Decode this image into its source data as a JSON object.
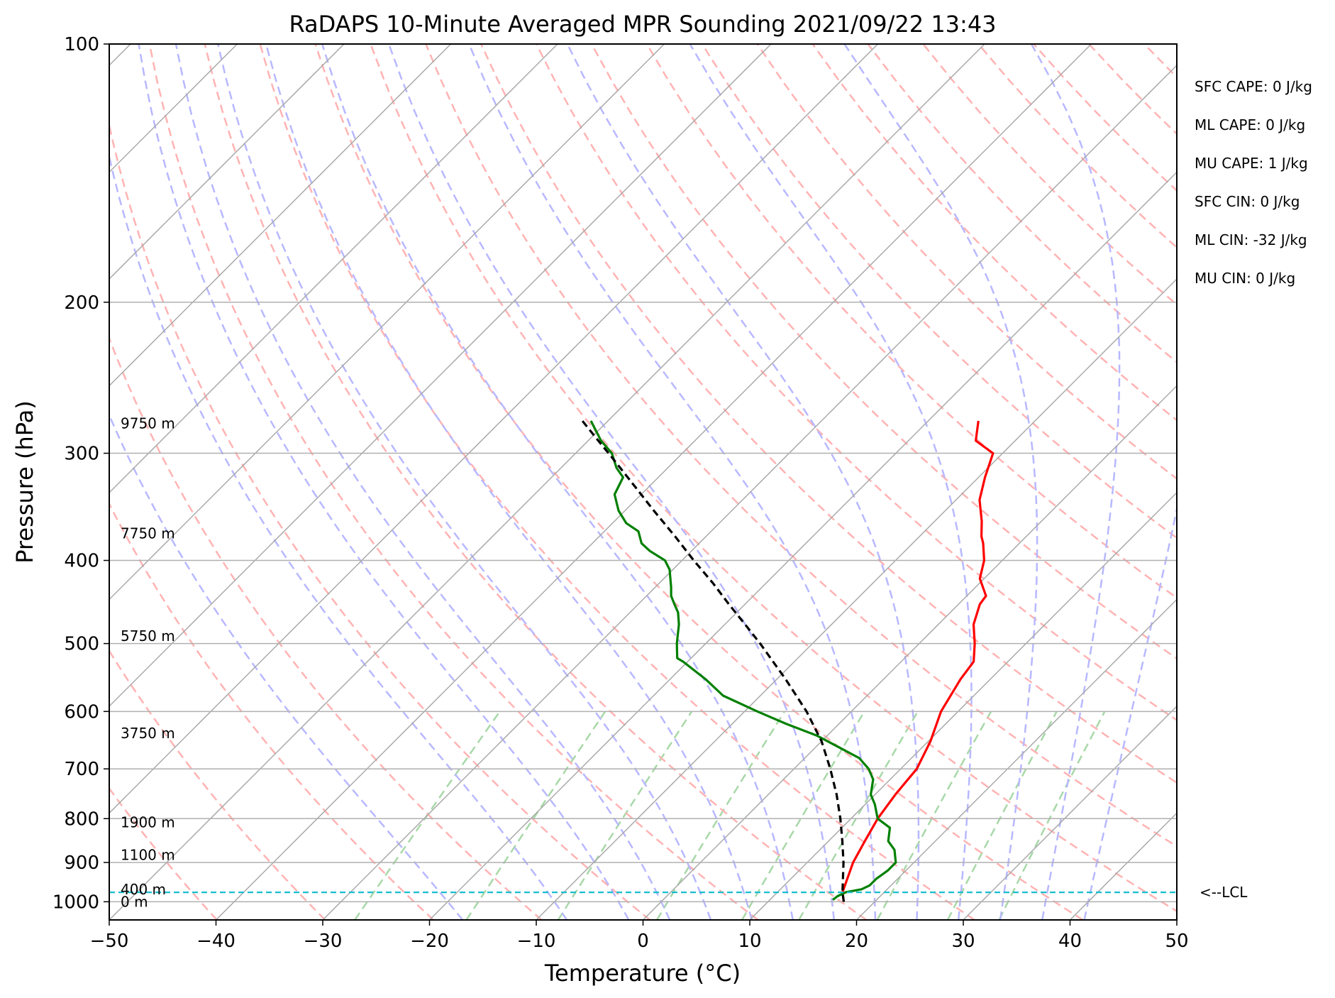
{
  "chart_data": {
    "type": "line",
    "title": "RaDAPS 10-Minute Averaged MPR Sounding 2021/09/22 13:43",
    "xlabel": "Temperature (°C)",
    "ylabel": "Pressure (hPa)",
    "xlim": [
      -50,
      50
    ],
    "ylim": [
      1050,
      100
    ],
    "y_scale": "log",
    "grid": true,
    "x_ticks": [
      "−50",
      "−40",
      "−30",
      "−20",
      "−10",
      "0",
      "10",
      "20",
      "30",
      "40",
      "50"
    ],
    "y_ticks": [
      {
        "p": 100,
        "label": "100"
      },
      {
        "p": 200,
        "label": "200"
      },
      {
        "p": 300,
        "label": "300"
      },
      {
        "p": 400,
        "label": "400"
      },
      {
        "p": 500,
        "label": "500"
      },
      {
        "p": 600,
        "label": "600"
      },
      {
        "p": 700,
        "label": "700"
      },
      {
        "p": 800,
        "label": "800"
      },
      {
        "p": 900,
        "label": "900"
      },
      {
        "p": 1000,
        "label": "1000"
      }
    ],
    "height_labels": [
      {
        "p": 1000,
        "label": "0 m"
      },
      {
        "p": 967,
        "label": "400 m"
      },
      {
        "p": 882,
        "label": "1100 m"
      },
      {
        "p": 808,
        "label": "1900 m"
      },
      {
        "p": 636,
        "label": "3750 m"
      },
      {
        "p": 490,
        "label": "5750 m"
      },
      {
        "p": 372,
        "label": "7750 m"
      },
      {
        "p": 277,
        "label": "9750 m"
      }
    ],
    "stats": [
      "SFC CAPE: 0 J/kg",
      "ML CAPE: 0 J/kg",
      "MU CAPE: 1 J/kg",
      "SFC CIN: 0 J/kg",
      "ML CIN: -32 J/kg",
      "MU CIN: 0 J/kg"
    ],
    "lcl": {
      "p": 975,
      "label": "<--LCL"
    },
    "series": [
      {
        "color": "#ff0000",
        "points": [
          [
            17.1,
            1000
          ],
          [
            16.1,
            975
          ],
          [
            14.3,
            900
          ],
          [
            13.4,
            850
          ],
          [
            12.5,
            800
          ],
          [
            11.9,
            750
          ],
          [
            11.5,
            700
          ],
          [
            10.2,
            650
          ],
          [
            8.4,
            600
          ],
          [
            7.2,
            550
          ],
          [
            6.8,
            525
          ],
          [
            5.2,
            500
          ],
          [
            3.3,
            475
          ],
          [
            2.0,
            450
          ],
          [
            1.8,
            440
          ],
          [
            -0.4,
            420
          ],
          [
            -1.7,
            400
          ],
          [
            -3.4,
            382
          ],
          [
            -4.2,
            375
          ],
          [
            -5.6,
            360
          ],
          [
            -7.8,
            340
          ],
          [
            -9.4,
            320
          ],
          [
            -10.9,
            300
          ],
          [
            -13.7,
            290
          ],
          [
            -15.3,
            275
          ]
        ]
      },
      {
        "color": "#008000",
        "points": [
          [
            15.9,
            995
          ],
          [
            16.0,
            985
          ],
          [
            16.4,
            975
          ],
          [
            17.6,
            967
          ],
          [
            18.0,
            957
          ],
          [
            18.0,
            940
          ],
          [
            18.3,
            920
          ],
          [
            18.3,
            900
          ],
          [
            17.0,
            870
          ],
          [
            15.6,
            850
          ],
          [
            14.5,
            820
          ],
          [
            12.5,
            800
          ],
          [
            10.9,
            770
          ],
          [
            9.6,
            750
          ],
          [
            8.4,
            720
          ],
          [
            7.0,
            700
          ],
          [
            5.1,
            680
          ],
          [
            2.1,
            660
          ],
          [
            -1.0,
            640
          ],
          [
            -5.0,
            620
          ],
          [
            -8.8,
            600
          ],
          [
            -13.5,
            575
          ],
          [
            -16.7,
            550
          ],
          [
            -20.4,
            525
          ],
          [
            -21.3,
            520
          ],
          [
            -22.7,
            500
          ],
          [
            -24.3,
            475
          ],
          [
            -25.5,
            460
          ],
          [
            -26.6,
            450
          ],
          [
            -27.7,
            440
          ],
          [
            -28.5,
            430
          ],
          [
            -30.3,
            410
          ],
          [
            -31.6,
            400
          ],
          [
            -33.9,
            390
          ],
          [
            -35.4,
            382
          ],
          [
            -36.8,
            370
          ],
          [
            -38.7,
            362
          ],
          [
            -40.6,
            350
          ],
          [
            -42.5,
            335
          ],
          [
            -43.3,
            320
          ],
          [
            -44.8,
            312
          ],
          [
            -46.6,
            300
          ],
          [
            -48.8,
            290
          ],
          [
            -51.6,
            275
          ]
        ]
      },
      {
        "color": "#000000",
        "dashed": true,
        "points": [
          [
            17.1,
            1000
          ],
          [
            16.1,
            975
          ],
          [
            13.4,
            900
          ],
          [
            11.3,
            850
          ],
          [
            9.0,
            800
          ],
          [
            6.4,
            750
          ],
          [
            3.4,
            700
          ],
          [
            0.0,
            650
          ],
          [
            -4.2,
            600
          ],
          [
            -9.2,
            550
          ],
          [
            -14.9,
            500
          ],
          [
            -18.1,
            475
          ],
          [
            -21.5,
            450
          ],
          [
            -25.0,
            425
          ],
          [
            -28.9,
            400
          ],
          [
            -32.9,
            375
          ],
          [
            -37.3,
            350
          ],
          [
            -41.9,
            325
          ],
          [
            -46.9,
            300
          ],
          [
            -48.2,
            294
          ],
          [
            -52.4,
            275
          ]
        ]
      }
    ],
    "colors": {
      "grid": "#b0b0b0",
      "isotherm": "#a8a8a8",
      "dry_adiabat": "#ffb3b3",
      "moist_adiabat": "#b8b8ff",
      "mixing_ratio": "#a8d8a8",
      "lcl_line": "#17becf"
    }
  }
}
